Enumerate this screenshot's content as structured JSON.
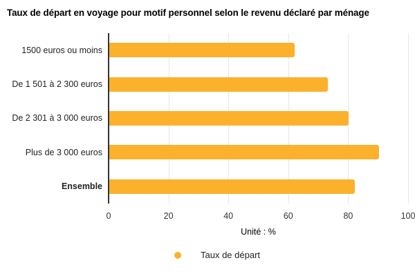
{
  "title": "Taux de départ en voyage pour motif personnel selon le revenu déclaré par ménage",
  "chart_data": {
    "type": "bar",
    "orientation": "horizontal",
    "title": "Taux de départ en voyage pour motif personnel selon le revenu déclaré par ménage",
    "categories": [
      "1500 euros ou moins",
      "De 1 501 à 2 300 euros",
      "De 2 301 à 3 000 euros",
      "Plus de 3 000 euros",
      "Ensemble"
    ],
    "values": [
      62,
      73,
      80,
      90,
      82
    ],
    "bold_categories": [
      "Ensemble"
    ],
    "series_name": "Taux de départ",
    "xlabel": "Unité : %",
    "ylabel": "",
    "xlim": [
      0,
      100
    ],
    "xticks": [
      0,
      20,
      40,
      60,
      80,
      100
    ],
    "grid": true,
    "legend_position": "bottom",
    "bar_color": "#FBB12C"
  },
  "colors": {
    "bar": "#FBB12C",
    "gridline": "#e6e6e6",
    "axis_line": "#333333",
    "title_text": "#000000",
    "label_text": "#222222"
  }
}
